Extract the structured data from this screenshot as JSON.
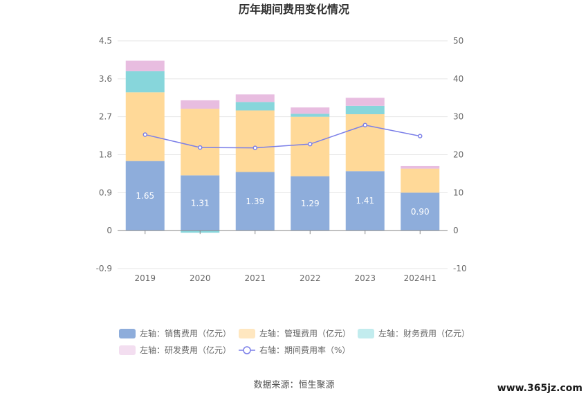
{
  "chart_data": {
    "type": "bar",
    "title": "历年期间费用变化情况",
    "categories": [
      "2019",
      "2020",
      "2021",
      "2022",
      "2023",
      "2024H1"
    ],
    "series": [
      {
        "name": "左轴：销售费用（亿元）",
        "axis": "left",
        "kind": "stacked-bar",
        "color": "#8eaddb",
        "values": [
          1.65,
          1.31,
          1.39,
          1.29,
          1.41,
          0.9
        ],
        "labels": [
          "1.65",
          "1.31",
          "1.39",
          "1.29",
          "1.41",
          "0.90"
        ]
      },
      {
        "name": "左轴：管理费用（亿元）",
        "axis": "left",
        "kind": "stacked-bar",
        "color": "#ffd998",
        "values": [
          1.63,
          1.58,
          1.46,
          1.41,
          1.35,
          0.57
        ]
      },
      {
        "name": "左轴：财务费用（亿元）",
        "axis": "left",
        "kind": "stacked-bar",
        "color": "#87d6db",
        "values": [
          0.5,
          -0.05,
          0.2,
          0.07,
          0.2,
          0.0
        ]
      },
      {
        "name": "左轴：研发费用（亿元）",
        "axis": "left",
        "kind": "stacked-bar",
        "color": "#e8bde0",
        "values": [
          0.25,
          0.2,
          0.18,
          0.15,
          0.19,
          0.06
        ]
      },
      {
        "name": "右轴：期间费用率（%）",
        "axis": "right",
        "kind": "line",
        "color": "#7b7fe8",
        "values": [
          25.3,
          21.9,
          21.8,
          22.8,
          27.8,
          24.9
        ]
      }
    ],
    "left_axis": {
      "ticks": [
        "4.5",
        "3.6",
        "2.7",
        "1.8",
        "0.9",
        "0",
        "-0.9"
      ],
      "ylim": [
        -0.9,
        4.5
      ]
    },
    "right_axis": {
      "ticks": [
        "50",
        "40",
        "30",
        "20",
        "10",
        "0",
        "-10"
      ],
      "ylim": [
        -10,
        50
      ]
    },
    "grid": true,
    "legend_position": "bottom"
  },
  "legend": [
    {
      "label": "左轴：销售费用（亿元）",
      "color": "#8eaddb",
      "shape": "rect"
    },
    {
      "label": "左轴：管理费用（亿元）",
      "color": "#ffe7c0",
      "shape": "rect"
    },
    {
      "label": "左轴：财务费用（亿元）",
      "color": "#c2ecee",
      "shape": "rect"
    },
    {
      "label": "左轴：研发费用（亿元）",
      "color": "#f3def0",
      "shape": "rect"
    },
    {
      "label": "右轴：期间费用率（%）",
      "color": "#7b7fe8",
      "shape": "line"
    }
  ],
  "source": "数据来源：恒生聚源",
  "watermark": "www.365jz.com"
}
